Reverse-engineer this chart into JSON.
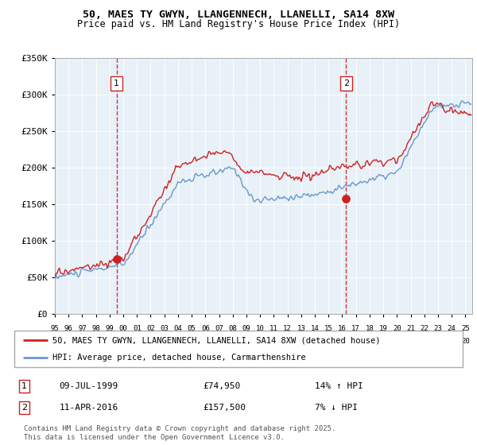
{
  "title1": "50, MAES TY GWYN, LLANGENNECH, LLANELLI, SA14 8XW",
  "title2": "Price paid vs. HM Land Registry's House Price Index (HPI)",
  "legend_line1": "50, MAES TY GWYN, LLANGENNECH, LLANELLI, SA14 8XW (detached house)",
  "legend_line2": "HPI: Average price, detached house, Carmarthenshire",
  "annotation1_date": "09-JUL-1999",
  "annotation1_price": 74950,
  "annotation1_hpi": "14% ↑ HPI",
  "annotation1_year": 1999.52,
  "annotation2_date": "11-APR-2016",
  "annotation2_price": 157500,
  "annotation2_hpi": "7% ↓ HPI",
  "annotation2_year": 2016.28,
  "ylabel_ticks": [
    "£0",
    "£50K",
    "£100K",
    "£150K",
    "£200K",
    "£250K",
    "£300K",
    "£350K"
  ],
  "ytick_vals": [
    0,
    50000,
    100000,
    150000,
    200000,
    250000,
    300000,
    350000
  ],
  "hpi_color": "#6699cc",
  "price_color": "#cc2222",
  "plot_bg": "#e8f0f8",
  "footer": "Contains HM Land Registry data © Crown copyright and database right 2025.\nThis data is licensed under the Open Government Licence v3.0."
}
